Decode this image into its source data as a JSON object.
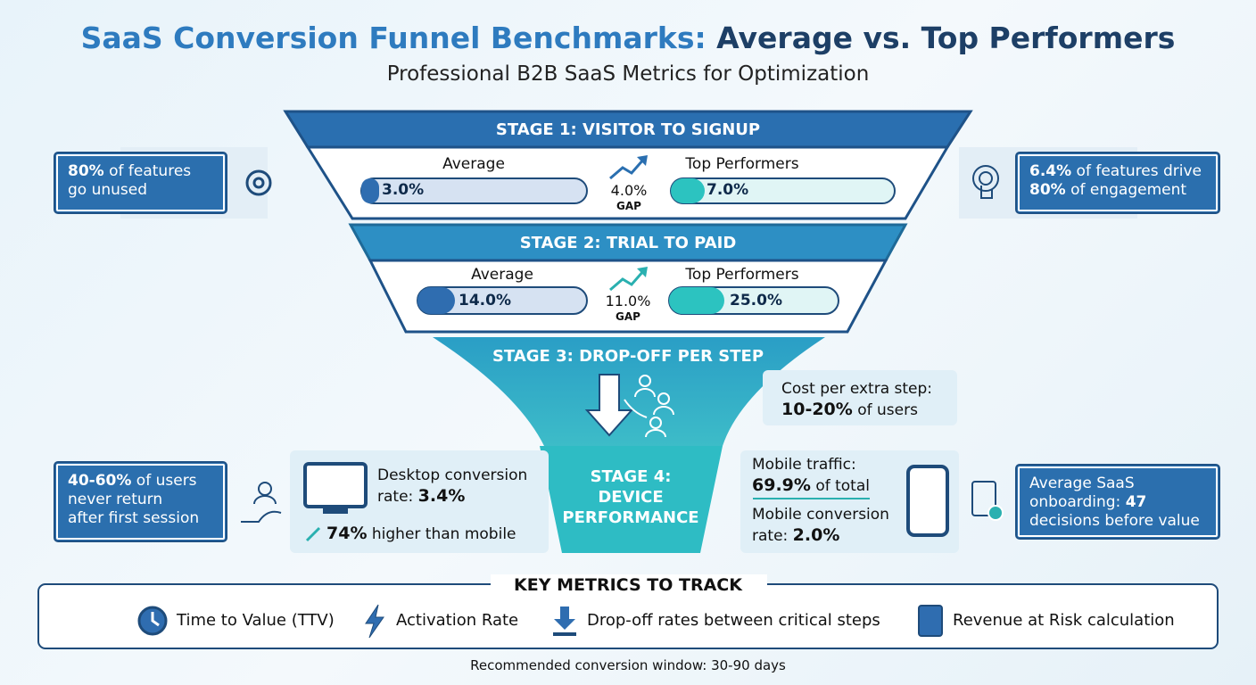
{
  "header": {
    "title_part1": "SaaS Conversion Funnel Benchmarks:",
    "title_part2": "Average vs. Top Performers",
    "subtitle": "Professional B2B SaaS Metrics for Optimization"
  },
  "stages": [
    {
      "title": "STAGE 1: VISITOR TO SIGNUP",
      "average_label": "Average",
      "average": "3.0%",
      "gap": "4.0%",
      "gap_label": "GAP",
      "top_label": "Top Performers",
      "top": "7.0%"
    },
    {
      "title": "STAGE 2: TRIAL TO PAID",
      "average_label": "Average",
      "average": "14.0%",
      "gap": "11.0%",
      "gap_label": "GAP",
      "top_label": "Top Performers",
      "top": "25.0%"
    },
    {
      "title": "STAGE 3: DROP-OFF PER STEP",
      "note": "Cost per extra step:",
      "note_bold": "10-20%",
      "note_rest": " of users"
    },
    {
      "title_lines": [
        "STAGE 4:",
        "DEVICE",
        "PERFORMANCE"
      ],
      "desktop": {
        "text": "Desktop conversion",
        "text2": "rate: ",
        "bold": "3.4%",
        "bold2": "74%",
        "text3": " higher than mobile"
      },
      "mobile": {
        "text": "Mobile traffic:",
        "bold": "69.9%",
        "text2": " of total",
        "text3": "Mobile conversion",
        "text4": "rate: ",
        "bold2": "2.0%"
      }
    }
  ],
  "callouts": {
    "left_top": {
      "bold": "80%",
      "text": " of features",
      "text2": "go unused"
    },
    "right_top": {
      "bold": "6.4%",
      "text": " of features drive",
      "bold2": "80%",
      "text2": " of engagement"
    },
    "left_bottom": {
      "bold": "40-60%",
      "text": " of users",
      "text2": "never return",
      "text3": "after first session"
    },
    "right_bottom": {
      "text": "Average SaaS",
      "text2": "onboarding: ",
      "bold": "47",
      "text3": "decisions before value"
    }
  },
  "key_metrics": {
    "title": "KEY METRICS TO TRACK",
    "items": [
      "Time to Value (TTV)",
      "Activation Rate",
      "Drop-off rates between critical steps",
      "Revenue at Risk calculation"
    ]
  },
  "footer": "Recommended conversion window: 30-90 days"
}
